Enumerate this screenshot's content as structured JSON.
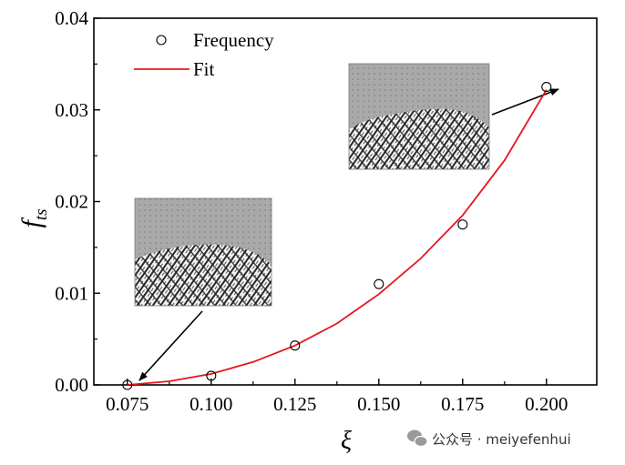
{
  "chart_data": {
    "type": "scatter",
    "x_axis": {
      "label": "ξ",
      "range": [
        0.065,
        0.215
      ],
      "ticks": [
        0.075,
        0.1,
        0.125,
        0.15,
        0.175,
        0.2
      ],
      "tick_labels": [
        "0.075",
        "0.100",
        "0.125",
        "0.150",
        "0.175",
        "0.200"
      ]
    },
    "y_axis": {
      "label_main": "f",
      "label_sub": "ts",
      "range": [
        0.0,
        0.04
      ],
      "ticks": [
        0.0,
        0.01,
        0.02,
        0.03,
        0.04
      ],
      "tick_labels": [
        "0.00",
        "0.01",
        "0.02",
        "0.03",
        "0.04"
      ]
    },
    "series": [
      {
        "name": "Frequency",
        "kind": "markers",
        "marker": "open-circle",
        "color": "#000000",
        "x": [
          0.075,
          0.1,
          0.125,
          0.15,
          0.175,
          0.2
        ],
        "y": [
          0.0,
          0.001,
          0.0043,
          0.011,
          0.0175,
          0.0325
        ]
      },
      {
        "name": "Fit",
        "kind": "line",
        "color": "#e8141b",
        "x": [
          0.075,
          0.0875,
          0.1,
          0.1125,
          0.125,
          0.1375,
          0.15,
          0.1625,
          0.175,
          0.1875,
          0.2
        ],
        "y": [
          0.0,
          0.0004,
          0.0012,
          0.0025,
          0.0043,
          0.0067,
          0.0099,
          0.0138,
          0.0185,
          0.0245,
          0.0322
        ]
      }
    ],
    "legend": {
      "position": "top-left",
      "entries": [
        {
          "label": "Frequency",
          "symbol": "open-circle"
        },
        {
          "label": "Fit",
          "symbol": "line",
          "color": "#e8141b"
        }
      ]
    },
    "insets": [
      {
        "name": "inset-high-xi",
        "points_to": {
          "x": 0.2,
          "y": 0.0325
        }
      },
      {
        "name": "inset-low-xi",
        "points_to": {
          "x": 0.075,
          "y": 0.0
        }
      }
    ]
  },
  "watermark": {
    "text": "公众号 · meiyefenhui",
    "icon": "wechat-icon",
    "icon_color": "#9a9a9a"
  }
}
